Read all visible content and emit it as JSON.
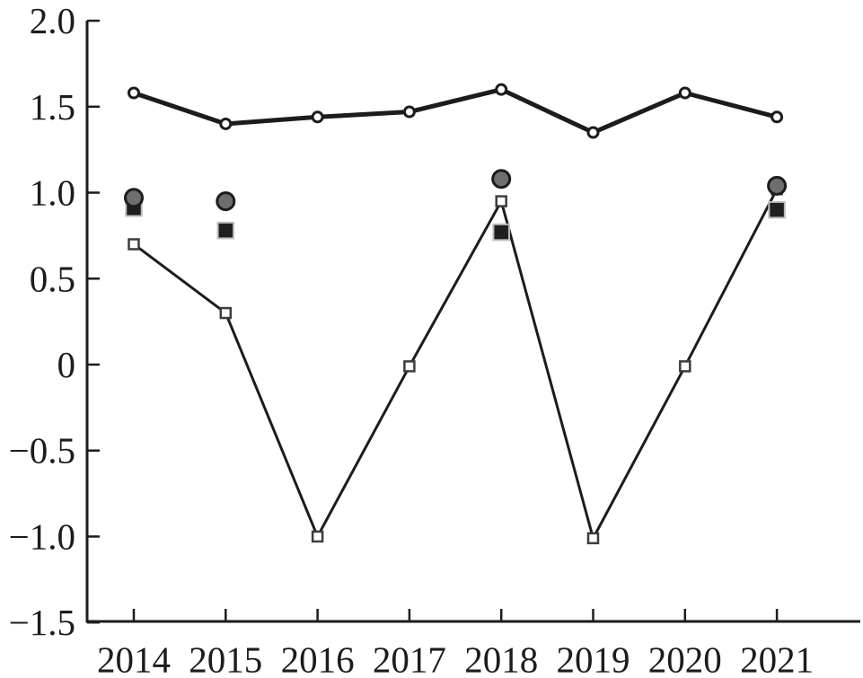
{
  "chart_data": {
    "type": "line",
    "title": "",
    "xlabel": "",
    "ylabel": "",
    "x": [
      2014,
      2015,
      2016,
      2017,
      2018,
      2019,
      2020,
      2021
    ],
    "categories": [
      "2014",
      "2015",
      "2016",
      "2017",
      "2018",
      "2019",
      "2020",
      "2021"
    ],
    "series": [
      {
        "name": "open-circle-line",
        "marker": "open-circle",
        "line": "thick",
        "values": [
          1.58,
          1.4,
          1.44,
          1.47,
          1.6,
          1.35,
          1.58,
          1.44
        ]
      },
      {
        "name": "open-square-line",
        "marker": "open-square",
        "line": "thin",
        "values": [
          0.7,
          0.3,
          -1.0,
          -0.01,
          0.95,
          -1.01,
          -0.01,
          1.02
        ]
      },
      {
        "name": "black-filled-square-points",
        "marker": "filled-black-square",
        "line": "none",
        "points": [
          {
            "x": 2014,
            "y": 0.91
          },
          {
            "x": 2015,
            "y": 0.78
          },
          {
            "x": 2018,
            "y": 0.77
          },
          {
            "x": 2021,
            "y": 0.9
          }
        ]
      },
      {
        "name": "gray-filled-circle-points",
        "marker": "filled-gray-circle",
        "line": "none",
        "points": [
          {
            "x": 2014,
            "y": 0.97
          },
          {
            "x": 2015,
            "y": 0.95
          },
          {
            "x": 2018,
            "y": 1.08
          },
          {
            "x": 2021,
            "y": 1.04
          }
        ]
      }
    ],
    "ylim": [
      -1.5,
      2.0
    ],
    "yticks": [
      2.0,
      1.5,
      1.0,
      0.5,
      0,
      -0.5,
      -1.0,
      -1.5
    ],
    "ytick_labels": [
      "2.0",
      "1.5",
      "1.0",
      "0.5",
      "0",
      "−0.5",
      "−1.0",
      "−1.5"
    ],
    "xtick_labels": [
      "2014",
      "2015",
      "2016",
      "2017",
      "2018",
      "2019",
      "2020",
      "2021"
    ],
    "grid": false,
    "legend": "none",
    "colors": {
      "line": "#1c1c1c",
      "open_marker_fill": "#ffffff",
      "open_square_edge": "#3c3c3c",
      "gray_marker_fill": "#6e6e6e",
      "gray_marker_edge": "#1c1c1c",
      "black_square_fill": "#1f1f1f",
      "black_square_edge": "#bdbdbd",
      "background": "#ffffff"
    }
  }
}
